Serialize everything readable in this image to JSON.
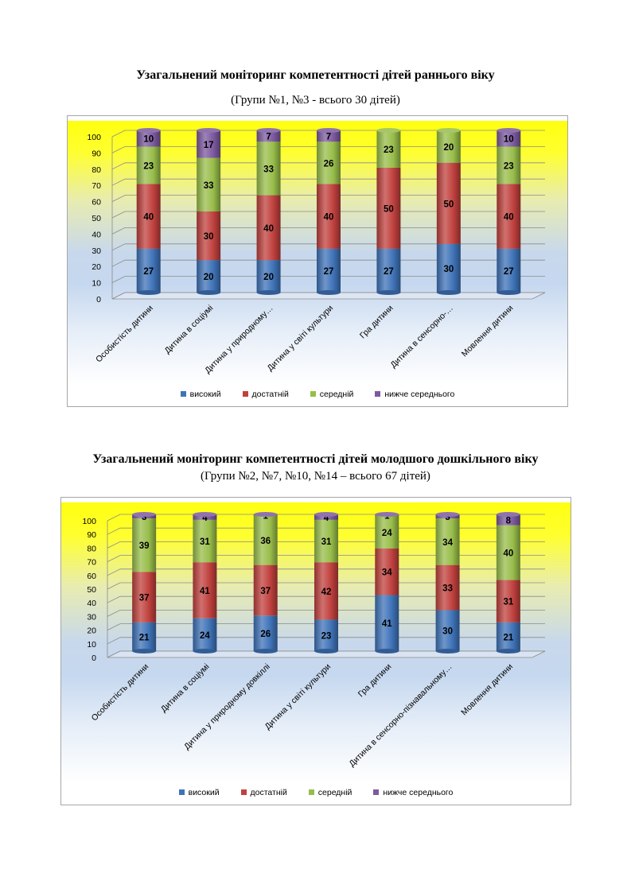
{
  "colors": {
    "high": "#3f73b8",
    "sufficient": "#c0413e",
    "medium": "#98bd4a",
    "below": "#7c5aa0"
  },
  "chart_data": [
    {
      "type": "bar",
      "stacked": true,
      "title": "Узагальнений моніторинг компетентності дітей раннього  віку",
      "subtitle": "(Групи №1, №3 - всього 30 дітей)",
      "categories": [
        "Особистість дитини",
        "Дитина в соціумі",
        "Дитина у природному…",
        "Дитина у світі культури",
        "Гра дитини",
        "Дитина в сенсорно-…",
        "Мовлення дитини"
      ],
      "series": [
        {
          "name": "високий",
          "color": "#3f73b8",
          "values": [
            27,
            20,
            20,
            27,
            27,
            30,
            27
          ]
        },
        {
          "name": "достатній",
          "color": "#c0413e",
          "values": [
            40,
            30,
            40,
            40,
            50,
            50,
            40
          ]
        },
        {
          "name": "середній",
          "color": "#98bd4a",
          "values": [
            23,
            33,
            33,
            26,
            23,
            20,
            23
          ]
        },
        {
          "name": "нижче середнього",
          "color": "#7c5aa0",
          "values": [
            10,
            17,
            7,
            7,
            0,
            0,
            10
          ]
        }
      ],
      "ylim": [
        0,
        100
      ],
      "yticks": [
        0,
        10,
        20,
        30,
        40,
        50,
        60,
        70,
        80,
        90,
        100
      ],
      "grid": true,
      "legend_position": "bottom"
    },
    {
      "type": "bar",
      "stacked": true,
      "title": "Узагальнений моніторинг компетентності дітей молодшого дошкільного віку",
      "subtitle": "(Групи №2, №7, №10, №14 – всього 67 дітей)",
      "categories": [
        "Особистість дитини",
        "Дитина в соціумі",
        "Дитина у природному довкіллі",
        "Дитина у світі культури",
        "Гра дитини",
        "Дитина в сенсорно-пізнавальному…",
        "Мовлення дитини"
      ],
      "series": [
        {
          "name": "високий",
          "color": "#3f73b8",
          "values": [
            21,
            24,
            26,
            23,
            41,
            30,
            21
          ]
        },
        {
          "name": "достатній",
          "color": "#c0413e",
          "values": [
            37,
            41,
            37,
            42,
            34,
            33,
            31
          ]
        },
        {
          "name": "середній",
          "color": "#98bd4a",
          "values": [
            39,
            31,
            36,
            31,
            24,
            34,
            40
          ]
        },
        {
          "name": "нижче середнього",
          "color": "#7c5aa0",
          "values": [
            3,
            4,
            1,
            4,
            1,
            3,
            8
          ]
        }
      ],
      "ylim": [
        0,
        100
      ],
      "yticks": [
        0,
        10,
        20,
        30,
        40,
        50,
        60,
        70,
        80,
        90,
        100
      ],
      "grid": true,
      "legend_position": "bottom"
    }
  ]
}
